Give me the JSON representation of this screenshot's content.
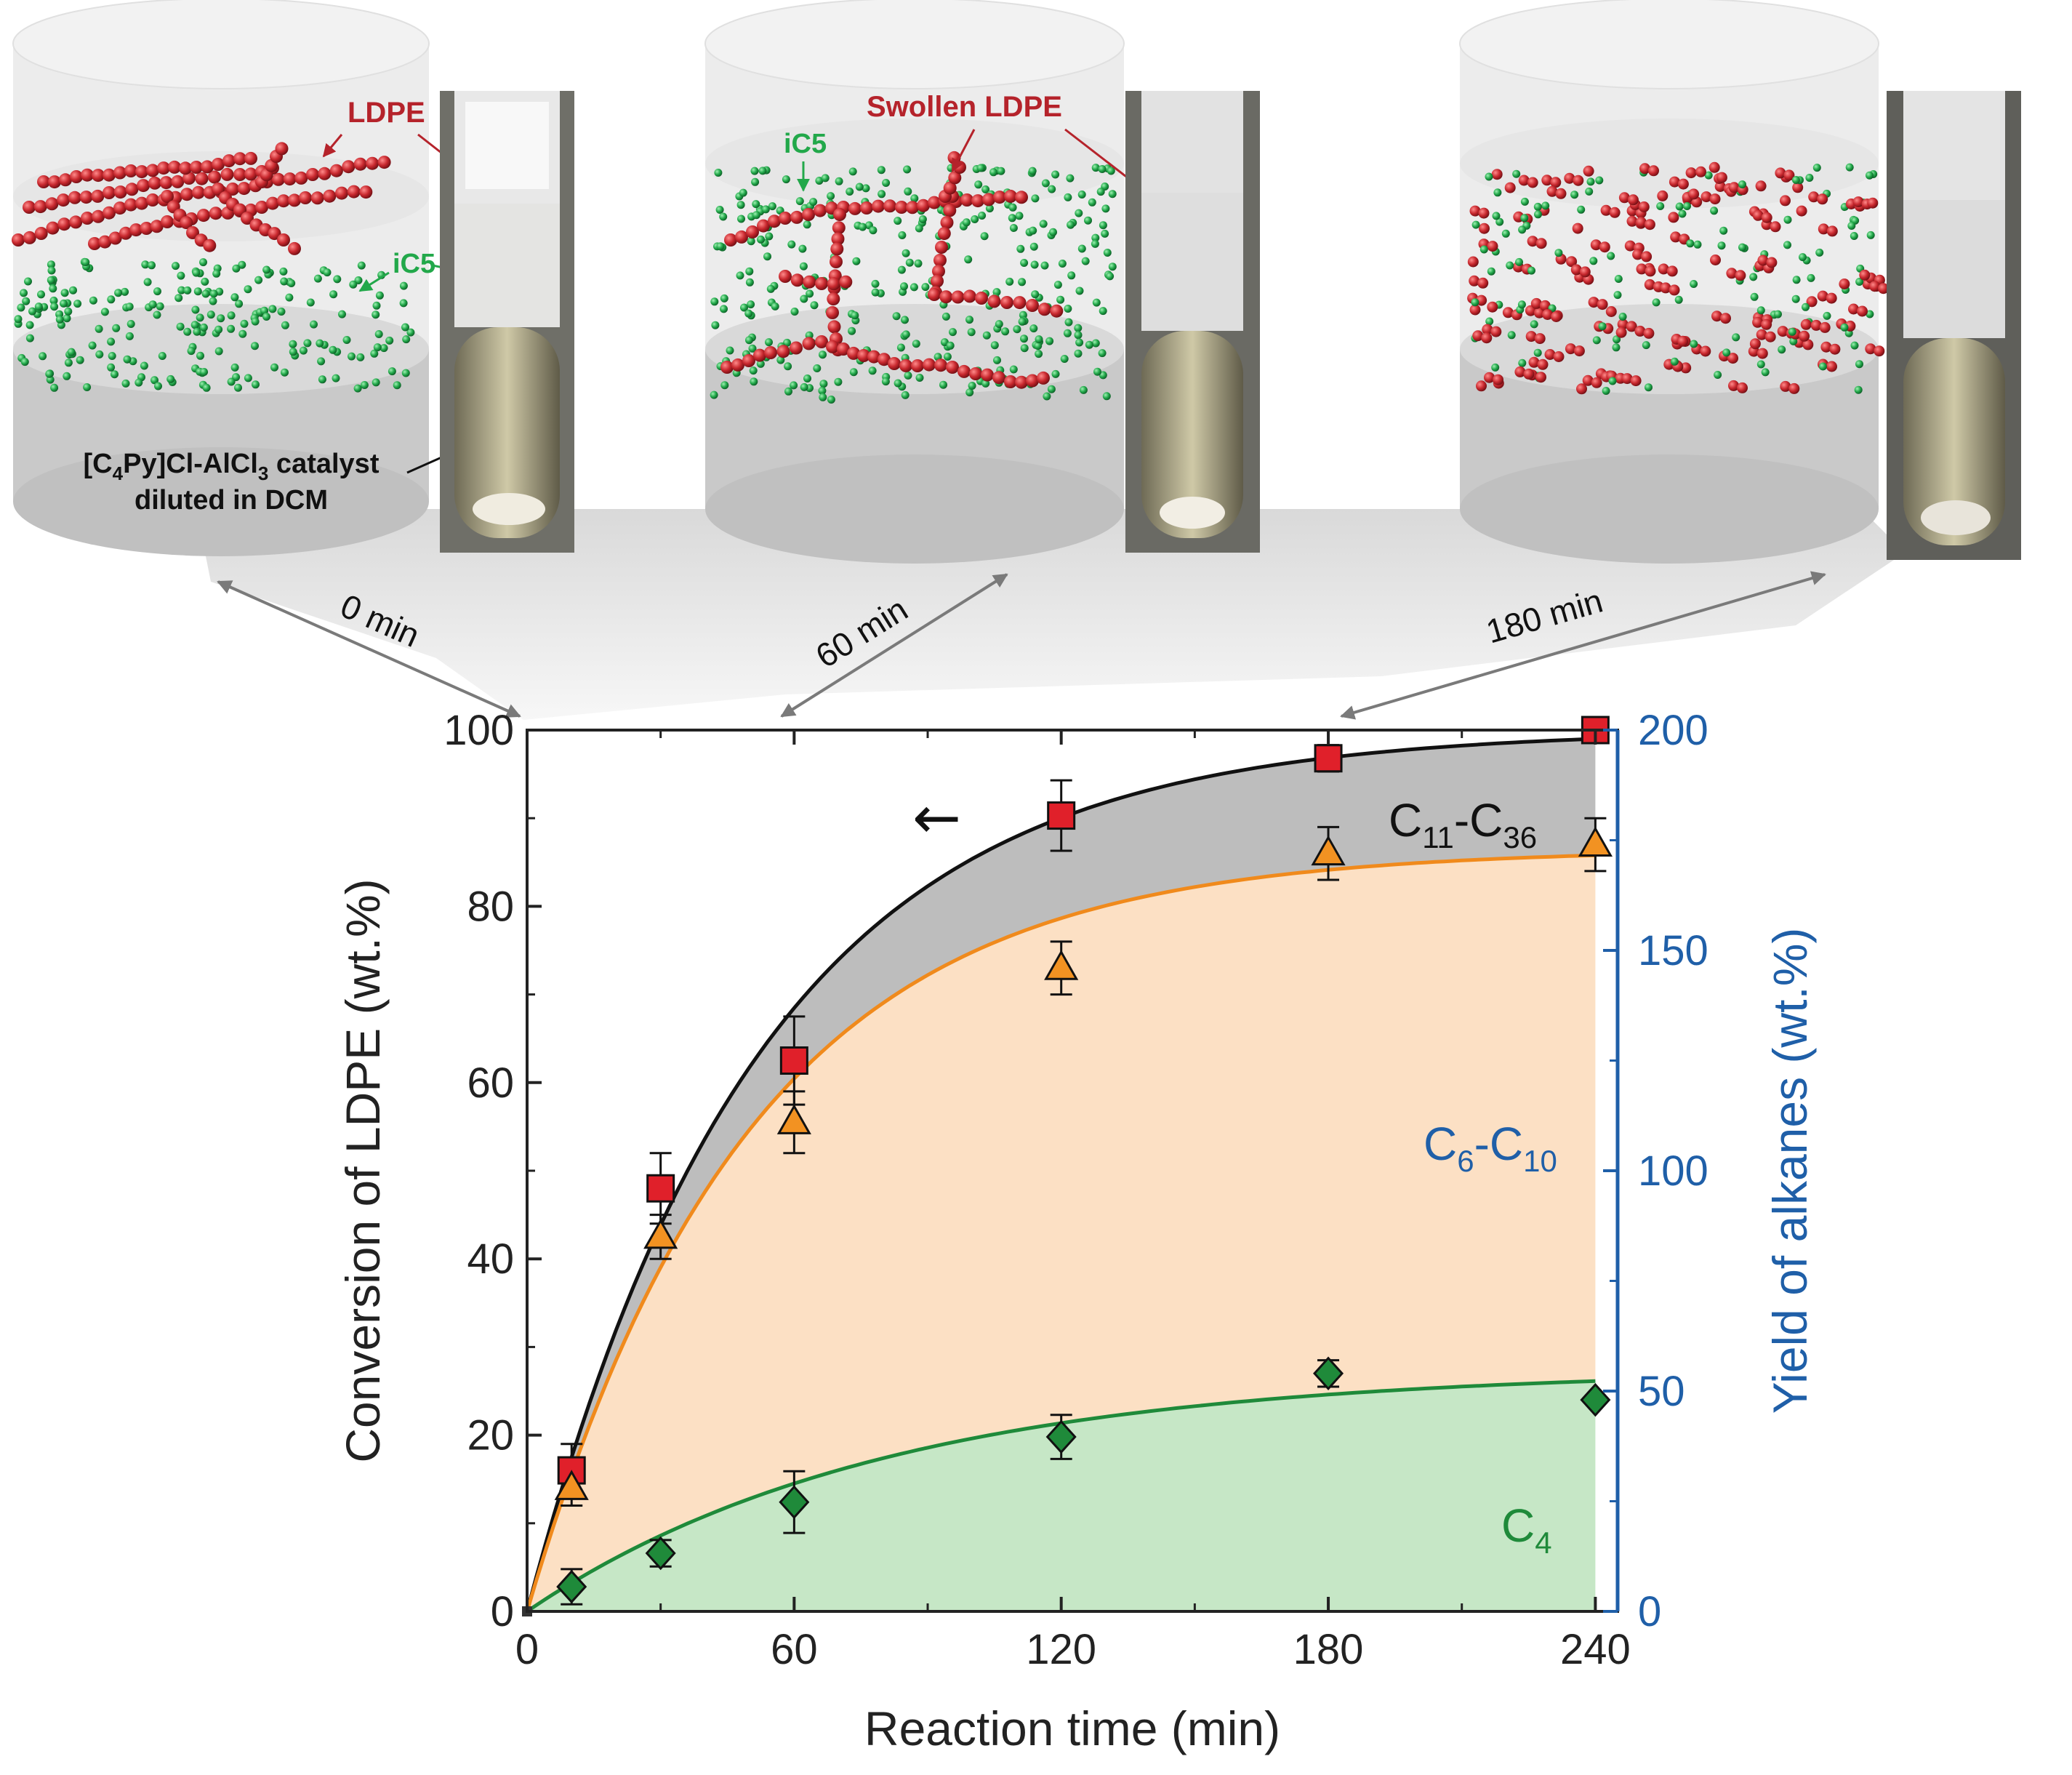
{
  "scenes": [
    {
      "time_label": "0 min",
      "label_ldpe": "LDPE",
      "label_ic5": "iC5",
      "catalyst_line1": "[C",
      "catalyst_sub1": "4",
      "catalyst_mid": "Py]Cl-AlCl",
      "catalyst_sub2": "3",
      "catalyst_end": " catalyst",
      "catalyst_line2": "diluted in DCM"
    },
    {
      "time_label": "60 min",
      "label_ldpe": "Swollen LDPE",
      "label_ic5": "iC5"
    },
    {
      "time_label": "180 min"
    }
  ],
  "colors": {
    "ldpe_red": "#c8282e",
    "ic5_green": "#22a84a",
    "total_fill": "#bdbdbd",
    "c6_fill": "#fce0c4",
    "c4_fill": "#c6e7c6",
    "orange_line": "#f08a1c",
    "green_line": "#1f8a3a",
    "right_axis": "#1f5fa8"
  },
  "chart_data": {
    "type": "scatter",
    "xlabel": "Reaction time (min)",
    "ylabel": "Conversion of LDPE (wt.%)",
    "ylabel_right": "Yield of alkanes  (wt.%)",
    "xlim": [
      0,
      245
    ],
    "ylim": [
      0,
      100
    ],
    "ylim_right": [
      0,
      200
    ],
    "x_ticks": [
      "0",
      "60",
      "120",
      "180",
      "240"
    ],
    "y_ticks": [
      "0",
      "20",
      "40",
      "60",
      "80",
      "100"
    ],
    "y_ticks_right": [
      "0",
      "50",
      "100",
      "150",
      "200"
    ],
    "grid": false,
    "series": [
      {
        "marker": "square",
        "axis": "left",
        "x": [
          10,
          30,
          60,
          120,
          180,
          240
        ],
        "y": [
          16,
          48,
          62.5,
          90.3,
          96.8,
          100
        ],
        "err": [
          3,
          4,
          5,
          4,
          1.5,
          0
        ]
      },
      {
        "marker": "triangle",
        "axis": "left",
        "x": [
          10,
          30,
          60,
          120,
          180,
          240
        ],
        "y": [
          14,
          42.5,
          55.5,
          73,
          86,
          87
        ],
        "err": [
          2,
          2.5,
          3.5,
          3,
          3,
          3
        ]
      },
      {
        "marker": "diamond",
        "axis": "left",
        "x": [
          10,
          30,
          60,
          120,
          180,
          240
        ],
        "y": [
          2.8,
          6.6,
          12.4,
          19.8,
          27,
          24
        ],
        "err": [
          2,
          1.5,
          3.5,
          2.5,
          1.5,
          0
        ]
      }
    ],
    "fits": [
      {
        "name": "total",
        "a": 100,
        "tau": 52
      },
      {
        "name": "c6c10",
        "a": 86.5,
        "tau": 50
      },
      {
        "name": "c4",
        "a": 27.5,
        "tau": 80
      }
    ],
    "region_labels": {
      "c11_main": "C",
      "c11_sub1": "11",
      "c11_dash": "-C",
      "c11_sub2": "36",
      "c6_main": "C",
      "c6_sub1": "6",
      "c6_dash": "-C",
      "c6_sub2": "10",
      "c4_main": "C",
      "c4_sub": "4"
    },
    "arrow_note": "←"
  }
}
